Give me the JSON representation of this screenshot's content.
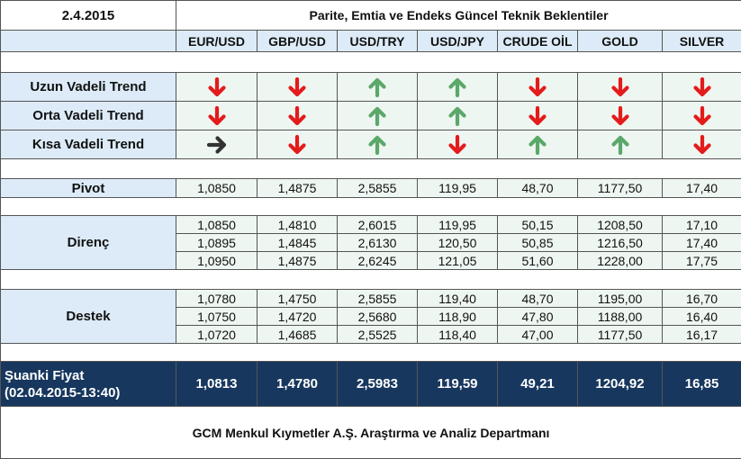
{
  "header": {
    "date": "2.4.2015",
    "title": "Parite, Emtia ve Endeks Güncel Teknik Beklentiler"
  },
  "columns": [
    "EUR/USD",
    "GBP/USD",
    "USD/TRY",
    "USD/JPY",
    "CRUDE OİL",
    "GOLD",
    "SILVER"
  ],
  "trends": [
    "Uzun Vadeli Trend",
    "Orta Vadeli Trend",
    "Kısa Vadeli Trend"
  ],
  "pivot": {
    "label": "Pivot",
    "values": [
      "1,0850",
      "1,4875",
      "2,5855",
      "119,95",
      "48,70",
      "1177,50",
      "17,40"
    ]
  },
  "resistance": {
    "label": "Direnç",
    "rows": [
      [
        "1,0850",
        "1,4810",
        "2,6015",
        "119,95",
        "50,15",
        "1208,50",
        "17,10"
      ],
      [
        "1,0895",
        "1,4845",
        "2,6130",
        "120,50",
        "50,85",
        "1216,50",
        "17,40"
      ],
      [
        "1,0950",
        "1,4875",
        "2,6245",
        "121,05",
        "51,60",
        "1228,00",
        "17,75"
      ]
    ]
  },
  "support": {
    "label": "Destek",
    "rows": [
      [
        "1,0780",
        "1,4750",
        "2,5855",
        "119,40",
        "48,70",
        "1195,00",
        "16,70"
      ],
      [
        "1,0750",
        "1,4720",
        "2,5680",
        "118,90",
        "47,80",
        "1188,00",
        "16,40"
      ],
      [
        "1,0720",
        "1,4685",
        "2,5525",
        "118,40",
        "47,00",
        "1177,50",
        "16,17"
      ]
    ]
  },
  "current": {
    "label": "Şuanki Fiyat",
    "time": "(02.04.2015-13:40)",
    "values": [
      "1,0813",
      "1,4780",
      "2,5983",
      "119,59",
      "49,21",
      "1204,92",
      "16,85"
    ]
  },
  "footer": "GCM Menkul Kıymetler A.Ş. Araştırma ve Analiz Departmanı"
}
